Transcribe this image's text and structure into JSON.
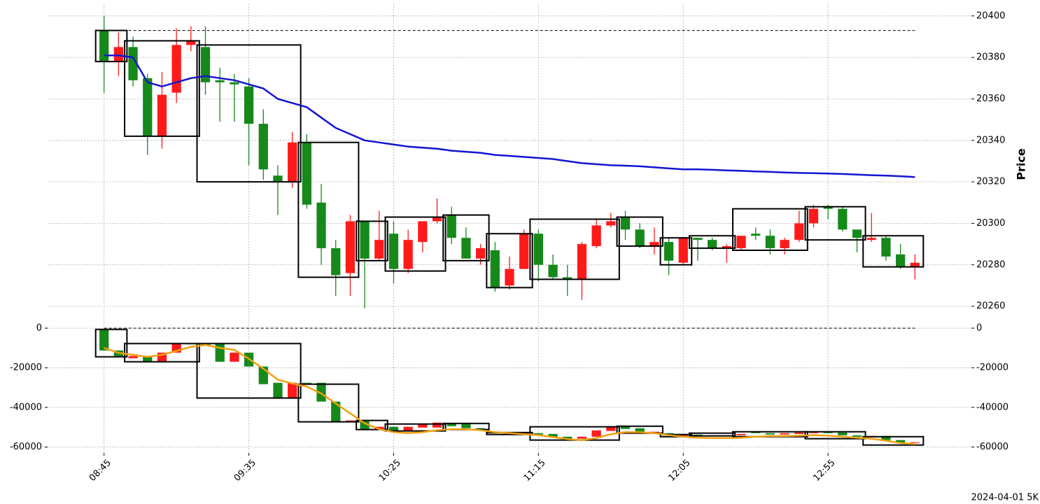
{
  "chart_data": [
    {
      "type": "candlestick",
      "categories": [
        "08:45",
        null,
        null,
        null,
        null,
        null,
        null,
        null,
        null,
        null,
        "09:35",
        null,
        null,
        null,
        null,
        null,
        null,
        null,
        null,
        null,
        "10:25",
        null,
        null,
        null,
        null,
        null,
        null,
        null,
        null,
        null,
        "11:15",
        null,
        null,
        null,
        null,
        null,
        null,
        null,
        null,
        null,
        "12:05",
        null,
        null,
        null,
        null,
        null,
        null,
        null,
        null,
        null,
        "12:55",
        null,
        null,
        null,
        null,
        null,
        null
      ],
      "xlim": [
        -3.9,
        59.9
      ],
      "ylabel": "Price",
      "annotation": "2024-04-01 5K",
      "ylim": [
        20256,
        20406
      ],
      "yticks": [
        20260,
        20280,
        20300,
        20320,
        20340,
        20360,
        20380,
        20400
      ],
      "grid": true,
      "up_color": "#ff1a1a",
      "down_color": "#15891a",
      "open": [
        20393,
        20378,
        20385,
        20370,
        20342,
        20363,
        20386,
        20385,
        20369,
        20368,
        20366,
        20348,
        20323,
        20320,
        20339,
        20310,
        20288,
        20276,
        20301,
        20283,
        20295,
        20278,
        20291,
        20301,
        20304,
        20293,
        20283,
        20287,
        20270,
        20278,
        20295,
        20280,
        20274,
        20273,
        20289,
        20299,
        20303,
        20297,
        20289,
        20291,
        20281,
        20293,
        20292,
        20288,
        20288,
        20295,
        20294,
        20288,
        20292,
        20300,
        20308,
        20307,
        20297,
        20292,
        20293,
        20285,
        20279
      ],
      "high": [
        20400,
        20392,
        20390,
        20372,
        20373,
        20394,
        20395,
        20395,
        20375,
        20372,
        20370,
        20355,
        20328,
        20344,
        20343,
        20319,
        20292,
        20304,
        20301,
        20306,
        20301,
        20297,
        20301,
        20312,
        20308,
        20298,
        20290,
        20291,
        20284,
        20297,
        20297,
        20285,
        20280,
        20291,
        20302,
        20305,
        20306,
        20300,
        20298,
        20293,
        20293,
        20293,
        20293,
        20290,
        20294,
        20298,
        20297,
        20293,
        20306,
        20309,
        20309,
        20308,
        20297,
        20305,
        20294,
        20290,
        20285
      ],
      "low": [
        20363,
        20371,
        20366,
        20333,
        20336,
        20358,
        20383,
        20362,
        20349,
        20349,
        20328,
        20321,
        20304,
        20317,
        20307,
        20280,
        20265,
        20265,
        20259,
        20282,
        20271,
        20276,
        20286,
        20300,
        20290,
        20283,
        20280,
        20267,
        20268,
        20278,
        20272,
        20273,
        20265,
        20263,
        20288,
        20298,
        20292,
        20288,
        20285,
        20275,
        20280,
        20282,
        20287,
        20281,
        20287,
        20292,
        20285,
        20285,
        20291,
        20298,
        20302,
        20296,
        20286,
        20291,
        20282,
        20278,
        20273
      ],
      "close": [
        20378,
        20385,
        20369,
        20342,
        20362,
        20386,
        20388,
        20368,
        20368,
        20367,
        20348,
        20326,
        20320,
        20339,
        20309,
        20288,
        20275,
        20301,
        20283,
        20292,
        20278,
        20292,
        20301,
        20303,
        20293,
        20283,
        20288,
        20269,
        20278,
        20295,
        20280,
        20274,
        20273,
        20290,
        20299,
        20301,
        20297,
        20289,
        20291,
        20282,
        20293,
        20292,
        20288,
        20289,
        20294,
        20294,
        20288,
        20292,
        20300,
        20307,
        20307,
        20297,
        20293,
        20293,
        20284,
        20279,
        20281
      ],
      "lines": [
        {
          "color": "#1414d2",
          "values": [
            20381,
            20381,
            20380,
            20368,
            20366,
            20368,
            20370,
            20371,
            20370,
            20369,
            20367,
            20365,
            20360,
            20358,
            20356,
            20351,
            20346,
            20343,
            20340,
            20339,
            20338,
            20337,
            20336.5,
            20336,
            20335,
            20334.5,
            20334,
            20333,
            20332.5,
            20332,
            20331.5,
            20331,
            20330,
            20329,
            20328.5,
            20328,
            20327.8,
            20327.5,
            20327,
            20326.5,
            20326,
            20326,
            20325.8,
            20325.5,
            20325.3,
            20325,
            20324.8,
            20324.5,
            20324.3,
            20324.2,
            20324,
            20323.8,
            20323.5,
            20323.2,
            20323,
            20322.7,
            20322.3
          ]
        }
      ],
      "hline": 20393,
      "box_color": "#000000",
      "boxes": {
        "start": [
          0,
          2,
          7,
          14,
          18,
          20,
          24,
          27,
          30,
          36,
          39,
          41,
          44,
          49,
          53
        ],
        "end": [
          1,
          6,
          13,
          17,
          19,
          23,
          26,
          29,
          35,
          38,
          40,
          43,
          48,
          52,
          56
        ],
        "top": [
          20393,
          20388,
          20386,
          20339,
          20301,
          20303,
          20304,
          20295,
          20302,
          20303,
          20293,
          20294,
          20307,
          20308,
          20294
        ],
        "bottom": [
          20378,
          20342,
          20320,
          20274,
          20282,
          20277,
          20282,
          20269,
          20273,
          20289,
          20280,
          20288,
          20287,
          20292,
          20279
        ]
      }
    },
    {
      "type": "candlestick",
      "ylim": [
        -63000,
        4000
      ],
      "yticks": [
        0,
        -20000,
        -40000,
        -60000
      ],
      "grid": true,
      "up_color": "#ff1a1a",
      "down_color": "#15891a",
      "open": [
        -700,
        -11300,
        -15200,
        -14100,
        -17000,
        -12400,
        -7800,
        -8200,
        -7800,
        -17000,
        -12400,
        -19400,
        -27600,
        -35300,
        -27600,
        -27600,
        -37100,
        -47300,
        -46600,
        -50900,
        -49800,
        -51900,
        -50200,
        -50200,
        -48100,
        -48400,
        -50500,
        -52700,
        -52700,
        -53400,
        -53000,
        -53400,
        -54800,
        -55800,
        -54800,
        -51900,
        -49500,
        -50500,
        -53000,
        -53000,
        -54400,
        -53700,
        -54100,
        -54400,
        -54100,
        -52300,
        -53000,
        -53700,
        -53400,
        -53000,
        -52300,
        -52700,
        -54100,
        -54800,
        -54400,
        -56500,
        -58000
      ],
      "close": [
        -11300,
        -14100,
        -14100,
        -17000,
        -12400,
        -7800,
        -8200,
        -8500,
        -17000,
        -12400,
        -19400,
        -28300,
        -35300,
        -27600,
        -28500,
        -37100,
        -47300,
        -46600,
        -50900,
        -49800,
        -51900,
        -49800,
        -48400,
        -47700,
        -49500,
        -50500,
        -51200,
        -53000,
        -53400,
        -52700,
        -53700,
        -54800,
        -55800,
        -54800,
        -51600,
        -49800,
        -50900,
        -52300,
        -52300,
        -54100,
        -53700,
        -54100,
        -54400,
        -54100,
        -53400,
        -53000,
        -53700,
        -53000,
        -52700,
        -52300,
        -53000,
        -54100,
        -54800,
        -54400,
        -56500,
        -58000,
        -57600
      ],
      "lines": [
        {
          "color": "#f0a010",
          "values": [
            -10000,
            -12500,
            -13500,
            -14500,
            -13500,
            -11500,
            -9500,
            -8500,
            -10000,
            -11000,
            -15500,
            -20500,
            -26000,
            -28000,
            -29500,
            -33000,
            -38000,
            -43000,
            -48000,
            -51000,
            -52500,
            -53000,
            -52500,
            -51500,
            -51000,
            -51000,
            -51500,
            -52500,
            -53000,
            -53500,
            -54000,
            -55000,
            -56000,
            -56500,
            -55500,
            -53500,
            -52500,
            -52500,
            -53000,
            -54000,
            -54800,
            -55300,
            -55500,
            -55500,
            -55300,
            -54800,
            -54500,
            -54500,
            -54300,
            -54000,
            -54300,
            -54800,
            -55300,
            -55800,
            -56800,
            -58000,
            -58500
          ]
        }
      ],
      "hline": 0,
      "box_color": "#000000",
      "boxes": {
        "start": [
          0,
          2,
          7,
          14,
          18,
          20,
          24,
          27,
          30,
          36,
          39,
          41,
          44,
          49,
          53
        ],
        "end": [
          1,
          6,
          13,
          17,
          19,
          23,
          26,
          29,
          35,
          38,
          40,
          43,
          48,
          52,
          56
        ],
        "top": [
          -700,
          -7800,
          -7800,
          -28300,
          -46600,
          -48400,
          -48100,
          -52700,
          -49800,
          -49500,
          -53700,
          -53000,
          -52300,
          -52300,
          -54800
        ],
        "bottom": [
          -14500,
          -17000,
          -35300,
          -47300,
          -51200,
          -51900,
          -51200,
          -53700,
          -56500,
          -53000,
          -54800,
          -54400,
          -54800,
          -55800,
          -59000
        ]
      }
    }
  ]
}
